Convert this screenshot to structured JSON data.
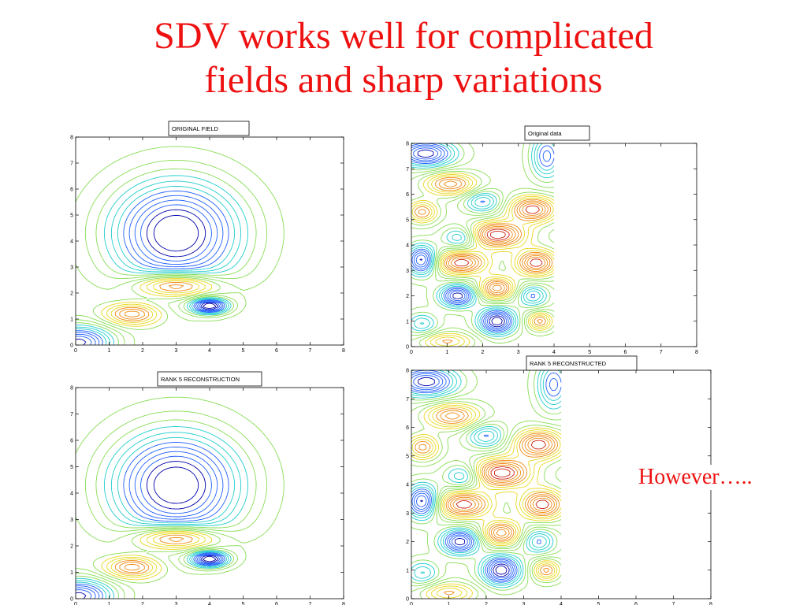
{
  "slide": {
    "title_line1": "SDV works well for complicated",
    "title_line2": "fields and sharp variations",
    "note": "However….."
  },
  "colors": {
    "title": "#ee1111",
    "contour_scale": [
      "#0000aa",
      "#1f5fff",
      "#22cccc",
      "#88dd55",
      "#e8d820",
      "#f08a10",
      "#cc2010"
    ]
  },
  "chart_data": [
    {
      "type": "contour",
      "title": "ORIGINAL FIELD",
      "x_ticks": [
        0,
        1,
        2,
        3,
        4,
        5,
        6,
        7,
        8
      ],
      "y_ticks": [
        0,
        1,
        2,
        3,
        4,
        5,
        6,
        7,
        8
      ],
      "xlim": [
        0,
        8
      ],
      "ylim": [
        0,
        8
      ],
      "features": [
        {
          "kind": "minimum",
          "x": 3.0,
          "y": 4.3,
          "color": "cyan"
        },
        {
          "kind": "maximum",
          "x": 3.0,
          "y": 2.3,
          "color": "red"
        },
        {
          "kind": "maximum",
          "x": 1.7,
          "y": 1.2,
          "color": "red"
        },
        {
          "kind": "minimum",
          "x": 4.0,
          "y": 1.5,
          "color": "cyan"
        },
        {
          "kind": "minimum",
          "x": 0.3,
          "y": 0.3,
          "color": "blue"
        }
      ]
    },
    {
      "type": "contour",
      "title": "Original data",
      "x_ticks": [
        0,
        1,
        2,
        3,
        4,
        5,
        6,
        7,
        8
      ],
      "y_ticks": [
        0,
        1,
        2,
        3,
        4,
        5,
        6,
        7,
        8
      ],
      "xlim": [
        0,
        8
      ],
      "ylim": [
        0,
        8
      ],
      "data_xlim": [
        0,
        4
      ],
      "features": [
        {
          "kind": "maximum",
          "x": 2.4,
          "y": 4.4,
          "color": "red"
        },
        {
          "kind": "maximum",
          "x": 1.4,
          "y": 3.3,
          "color": "red"
        },
        {
          "kind": "maximum",
          "x": 3.5,
          "y": 3.3,
          "color": "red"
        },
        {
          "kind": "maximum",
          "x": 3.4,
          "y": 5.4,
          "color": "red"
        },
        {
          "kind": "maximum",
          "x": 2.4,
          "y": 2.3,
          "color": "red"
        },
        {
          "kind": "minimum",
          "x": 2.4,
          "y": 1.0,
          "color": "blue"
        },
        {
          "kind": "minimum",
          "x": 1.3,
          "y": 2.0,
          "color": "blue"
        },
        {
          "kind": "minimum",
          "x": 0.3,
          "y": 3.4,
          "color": "blue"
        },
        {
          "kind": "minimum",
          "x": 0.4,
          "y": 7.6,
          "color": "blue"
        }
      ]
    },
    {
      "type": "contour",
      "title": "RANK 5 RECONSTRUCTION",
      "x_ticks": [
        0,
        1,
        2,
        3,
        4,
        5,
        6,
        7,
        8
      ],
      "y_ticks": [
        0,
        1,
        2,
        3,
        4,
        5,
        6,
        7,
        8
      ],
      "xlim": [
        0,
        8
      ],
      "ylim": [
        0,
        8
      ],
      "features": [
        {
          "kind": "minimum",
          "x": 3.0,
          "y": 4.3,
          "color": "cyan"
        },
        {
          "kind": "maximum",
          "x": 3.0,
          "y": 2.3,
          "color": "red"
        },
        {
          "kind": "maximum",
          "x": 1.7,
          "y": 1.2,
          "color": "red"
        },
        {
          "kind": "minimum",
          "x": 4.0,
          "y": 1.5,
          "color": "cyan"
        },
        {
          "kind": "minimum",
          "x": 0.3,
          "y": 0.3,
          "color": "blue"
        }
      ]
    },
    {
      "type": "contour",
      "title": "RANK 5 RECONSTRUCTED",
      "x_ticks": [
        0,
        1,
        2,
        3,
        4,
        5,
        6,
        7,
        8
      ],
      "y_ticks": [
        0,
        1,
        2,
        3,
        4,
        5,
        6,
        7,
        8
      ],
      "xlim": [
        0,
        8
      ],
      "ylim": [
        0,
        8
      ],
      "data_xlim": [
        0,
        4
      ],
      "features": [
        {
          "kind": "maximum",
          "x": 2.4,
          "y": 4.4,
          "color": "red"
        },
        {
          "kind": "maximum",
          "x": 1.4,
          "y": 3.3,
          "color": "red"
        },
        {
          "kind": "maximum",
          "x": 3.5,
          "y": 3.3,
          "color": "red"
        },
        {
          "kind": "maximum",
          "x": 3.4,
          "y": 5.4,
          "color": "red"
        },
        {
          "kind": "maximum",
          "x": 2.4,
          "y": 2.3,
          "color": "red"
        },
        {
          "kind": "minimum",
          "x": 2.4,
          "y": 1.0,
          "color": "blue"
        },
        {
          "kind": "minimum",
          "x": 1.3,
          "y": 2.0,
          "color": "blue"
        },
        {
          "kind": "minimum",
          "x": 0.3,
          "y": 3.4,
          "color": "blue"
        },
        {
          "kind": "minimum",
          "x": 0.4,
          "y": 7.6,
          "color": "blue"
        }
      ]
    }
  ]
}
